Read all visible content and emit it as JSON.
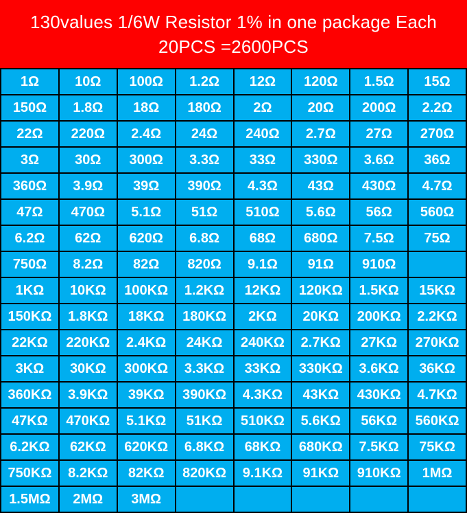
{
  "header": {
    "line1": "130values 1/6W Resistor 1% in one package Each",
    "line2": "20PCS =2600PCS"
  },
  "colors": {
    "header_bg": "#fe0000",
    "cell_bg": "#00aeef",
    "grid_lines": "#000000",
    "text": "#ffffff"
  },
  "table": {
    "rows": [
      [
        "1Ω",
        "10Ω",
        "100Ω",
        "1.2Ω",
        "12Ω",
        "120Ω",
        "1.5Ω",
        "15Ω"
      ],
      [
        "150Ω",
        "1.8Ω",
        "18Ω",
        "180Ω",
        "2Ω",
        "20Ω",
        "200Ω",
        "2.2Ω"
      ],
      [
        "22Ω",
        "220Ω",
        "2.4Ω",
        "24Ω",
        "240Ω",
        "2.7Ω",
        "27Ω",
        "270Ω"
      ],
      [
        "3Ω",
        "30Ω",
        "300Ω",
        "3.3Ω",
        "33Ω",
        "330Ω",
        "3.6Ω",
        "36Ω"
      ],
      [
        "360Ω",
        "3.9Ω",
        "39Ω",
        "390Ω",
        "4.3Ω",
        "43Ω",
        "430Ω",
        "4.7Ω"
      ],
      [
        "47Ω",
        "470Ω",
        "5.1Ω",
        "51Ω",
        "510Ω",
        "5.6Ω",
        "56Ω",
        "560Ω"
      ],
      [
        "6.2Ω",
        "62Ω",
        "620Ω",
        "6.8Ω",
        "68Ω",
        "680Ω",
        "7.5Ω",
        "75Ω"
      ],
      [
        "750Ω",
        "8.2Ω",
        "82Ω",
        "820Ω",
        "9.1Ω",
        "91Ω",
        "910Ω",
        ""
      ],
      [
        "1KΩ",
        "10KΩ",
        "100KΩ",
        "1.2KΩ",
        "12KΩ",
        "120KΩ",
        "1.5KΩ",
        "15KΩ"
      ],
      [
        "150KΩ",
        "1.8KΩ",
        "18KΩ",
        "180KΩ",
        "2KΩ",
        "20KΩ",
        "200KΩ",
        "2.2KΩ"
      ],
      [
        "22KΩ",
        "220KΩ",
        "2.4KΩ",
        "24KΩ",
        "240KΩ",
        "2.7KΩ",
        "27KΩ",
        "270KΩ"
      ],
      [
        "3KΩ",
        "30KΩ",
        "300KΩ",
        "3.3KΩ",
        "33KΩ",
        "330KΩ",
        "3.6KΩ",
        "36KΩ"
      ],
      [
        "360KΩ",
        "3.9KΩ",
        "39KΩ",
        "390KΩ",
        "4.3KΩ",
        "43KΩ",
        "430KΩ",
        "4.7KΩ"
      ],
      [
        "47KΩ",
        "470KΩ",
        "5.1KΩ",
        "51KΩ",
        "510KΩ",
        "5.6KΩ",
        "56KΩ",
        "560KΩ"
      ],
      [
        "6.2KΩ",
        "62KΩ",
        "620KΩ",
        "6.8KΩ",
        "68KΩ",
        "680KΩ",
        "7.5KΩ",
        "75KΩ"
      ],
      [
        "750KΩ",
        "8.2KΩ",
        "82KΩ",
        "820KΩ",
        "9.1KΩ",
        "91KΩ",
        "910KΩ",
        "1MΩ"
      ],
      [
        "1.5MΩ",
        "2MΩ",
        "3MΩ",
        "",
        "",
        "",
        "",
        ""
      ]
    ]
  }
}
